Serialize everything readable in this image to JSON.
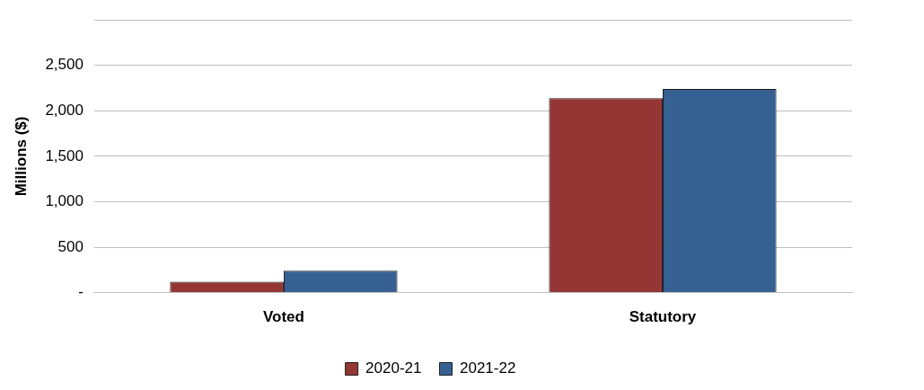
{
  "chart_data": {
    "type": "bar",
    "ylabel": "Millions ($)",
    "categories": [
      "Voted",
      "Statutory"
    ],
    "series": [
      {
        "name": "2020-21",
        "color": "#943634",
        "values": [
          120,
          2140
        ]
      },
      {
        "name": "2021-22",
        "color": "#376092",
        "values": [
          240,
          2240
        ]
      }
    ],
    "ylim": [
      0,
      3000
    ],
    "yticks": [
      {
        "value": 0,
        "label": "-"
      },
      {
        "value": 500,
        "label": "500"
      },
      {
        "value": 1000,
        "label": "1,000"
      },
      {
        "value": 1500,
        "label": "1,500"
      },
      {
        "value": 2000,
        "label": "2,000"
      },
      {
        "value": 2500,
        "label": "2,500"
      },
      {
        "value": 3000,
        "label": null
      }
    ],
    "grid": "y",
    "legend": "bottom"
  }
}
